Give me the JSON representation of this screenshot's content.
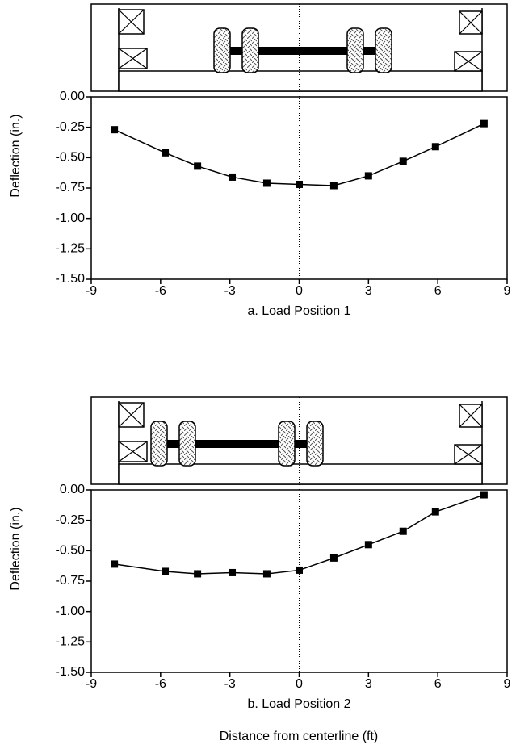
{
  "chart_data": [
    {
      "type": "line",
      "xlabel": "a. Load Position 1",
      "ylabel": "Deflection (in.)",
      "x": [
        -8,
        -5.8,
        -4.4,
        -2.9,
        -1.4,
        0,
        1.5,
        3,
        4.5,
        5.9,
        8
      ],
      "series": [
        {
          "color": "#000000",
          "values": [
            -0.27,
            -0.46,
            -0.57,
            -0.66,
            -0.71,
            -0.72,
            -0.73,
            -0.65,
            -0.53,
            -0.41,
            -0.22
          ]
        }
      ],
      "xlim": [
        -9,
        9
      ],
      "xticks": [
        -9,
        -6,
        -3,
        0,
        3,
        6,
        9
      ],
      "ylim": [
        -1.5,
        0
      ],
      "yticks": [
        {
          "value": 0,
          "label": "0.00"
        },
        {
          "value": -0.25,
          "label": "-0.25"
        },
        {
          "value": -0.5,
          "label": "-0.50"
        },
        {
          "value": -0.75,
          "label": "-0.75"
        },
        {
          "value": -1,
          "label": "-1.00"
        },
        {
          "value": -1.25,
          "label": "-1.25"
        },
        {
          "value": -1.5,
          "label": "-1.50"
        }
      ],
      "vline": 0
    },
    {
      "type": "line",
      "xlabel": "b. Load Position 2",
      "ylabel": "Deflection (in.)",
      "x": [
        -8,
        -5.8,
        -4.4,
        -2.9,
        -1.4,
        0,
        1.5,
        3,
        4.5,
        5.9,
        8
      ],
      "series": [
        {
          "color": "#000000",
          "values": [
            -0.61,
            -0.67,
            -0.69,
            -0.68,
            -0.69,
            -0.66,
            -0.56,
            -0.45,
            -0.34,
            -0.18,
            -0.04
          ]
        }
      ],
      "xlim": [
        -9,
        9
      ],
      "xticks": [
        -9,
        -6,
        -3,
        0,
        3,
        6,
        9
      ],
      "ylim": [
        -1.5,
        0
      ],
      "yticks": [
        {
          "value": 0,
          "label": "0.00"
        },
        {
          "value": -0.25,
          "label": "-0.25"
        },
        {
          "value": -0.5,
          "label": "-0.50"
        },
        {
          "value": -0.75,
          "label": "-0.75"
        },
        {
          "value": -1,
          "label": "-1.00"
        },
        {
          "value": -1.25,
          "label": "-1.25"
        },
        {
          "value": -1.5,
          "label": "-1.50"
        }
      ],
      "vline": 0
    }
  ],
  "shared_xlabel": "Distance from centerline (ft)"
}
